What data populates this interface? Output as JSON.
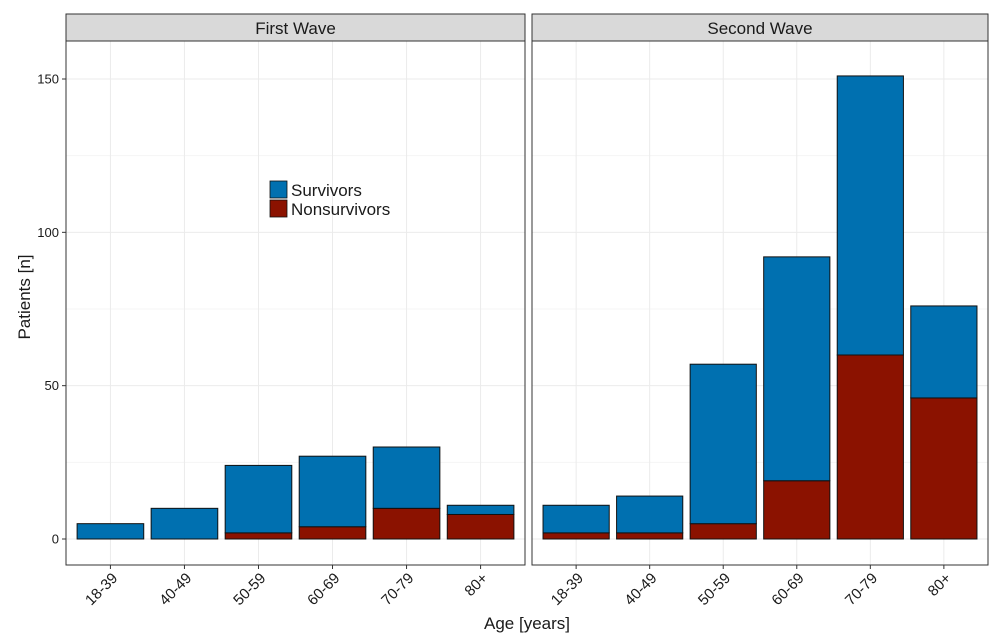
{
  "chart_data": {
    "type": "bar",
    "stacked": true,
    "xlabel": "Age [years]",
    "ylabel": "Patients [n]",
    "ylim": [
      -5,
      165
    ],
    "yticks": [
      0,
      50,
      100,
      150
    ],
    "grid": true,
    "legend": {
      "placement": "inside top-center of first panel",
      "entries": [
        {
          "name": "Survivors",
          "color": "#0070b0"
        },
        {
          "name": "Nonsurvivors",
          "color": "#8b1200"
        }
      ]
    },
    "categories": [
      "18-39",
      "40-49",
      "50-59",
      "60-69",
      "70-79",
      "80+"
    ],
    "panels": [
      {
        "title": "First Wave",
        "series": [
          {
            "name": "Nonsurvivors",
            "values": [
              0,
              0,
              2,
              4,
              10,
              8
            ]
          },
          {
            "name": "Survivors",
            "values": [
              5,
              10,
              22,
              23,
              20,
              3
            ]
          }
        ]
      },
      {
        "title": "Second Wave",
        "series": [
          {
            "name": "Nonsurvivors",
            "values": [
              2,
              2,
              5,
              19,
              60,
              46
            ]
          },
          {
            "name": "Survivors",
            "values": [
              9,
              12,
              52,
              73,
              91,
              30
            ]
          }
        ]
      }
    ]
  },
  "colors": {
    "survivors": "#0070b0",
    "nonsurvivors": "#8b1200",
    "strip_background": "#d9d9d9",
    "grid": "#ebebeb",
    "border": "#333333"
  }
}
